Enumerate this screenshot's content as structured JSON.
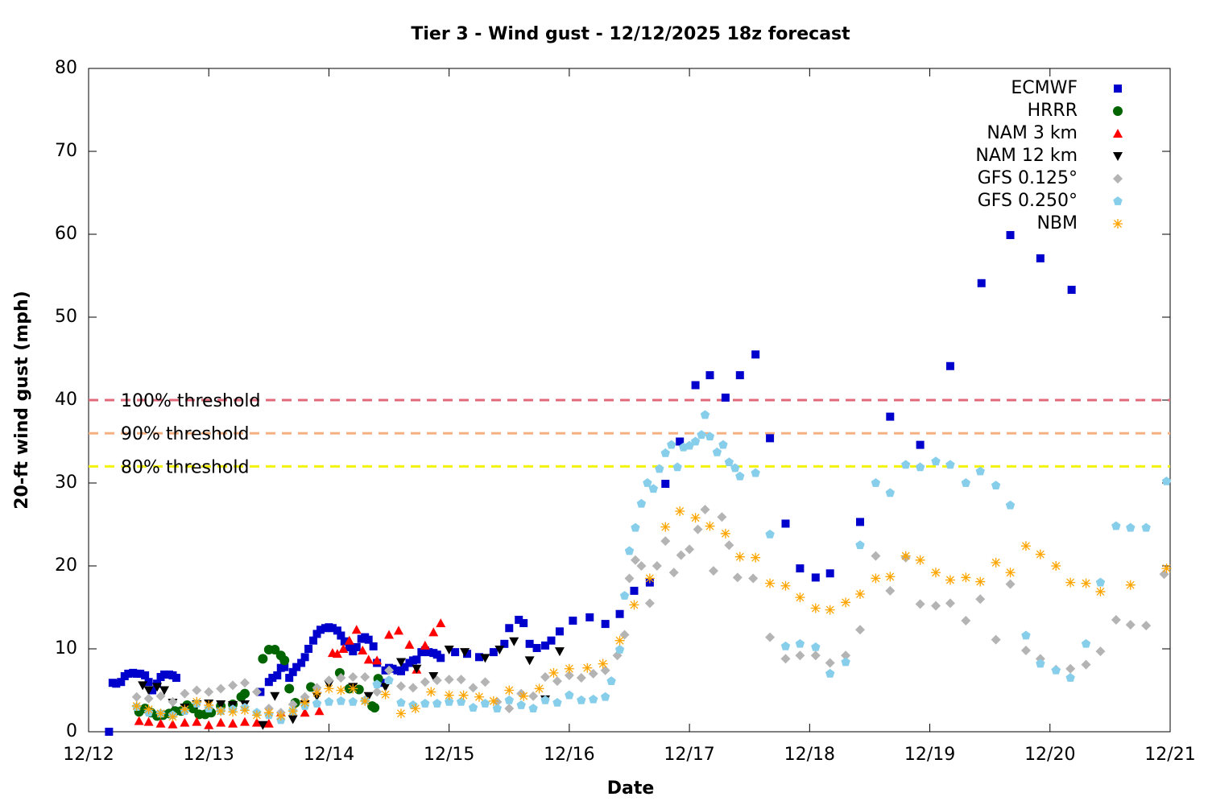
{
  "chart_data": {
    "type": "scatter",
    "title": "Tier 3 - Wind gust - 12/12/2025 18z forecast",
    "x_label": "Date",
    "y_label": "20-ft wind gust (mph)",
    "xlim": [
      12,
      21
    ],
    "xticks": [
      {
        "value": 12,
        "label": "12/12"
      },
      {
        "value": 13,
        "label": "12/13"
      },
      {
        "value": 14,
        "label": "12/14"
      },
      {
        "value": 15,
        "label": "12/15"
      },
      {
        "value": 16,
        "label": "12/16"
      },
      {
        "value": 17,
        "label": "12/17"
      },
      {
        "value": 18,
        "label": "12/18"
      },
      {
        "value": 19,
        "label": "12/19"
      },
      {
        "value": 20,
        "label": "12/20"
      },
      {
        "value": 21,
        "label": "12/21"
      }
    ],
    "ylim": [
      0,
      80
    ],
    "yticks": [
      0,
      10,
      20,
      30,
      40,
      50,
      60,
      70,
      80
    ],
    "legend": "top-right",
    "hlines": [
      {
        "value": 40,
        "label": "100% threshold",
        "color": "#e06a7a"
      },
      {
        "value": 36,
        "label": "90% threshold",
        "color": "#f5b182"
      },
      {
        "value": 32,
        "label": "80% threshold",
        "color": "#f2f20a"
      }
    ],
    "series": [
      {
        "name": "ECMWF",
        "color": "#0000cc",
        "marker": "square",
        "x": [
          12.17,
          12.2,
          12.23,
          12.27,
          12.3,
          12.33,
          12.37,
          12.4,
          12.43,
          12.47,
          12.5,
          12.53,
          12.57,
          12.6,
          12.63,
          12.67,
          12.7,
          12.73,
          13.43,
          13.5,
          13.53,
          13.57,
          13.6,
          13.63,
          13.67,
          13.7,
          13.73,
          13.77,
          13.8,
          13.83,
          13.87,
          13.9,
          13.93,
          13.97,
          14.0,
          14.03,
          14.07,
          14.1,
          14.13,
          14.17,
          14.2,
          14.23,
          14.27,
          14.3,
          14.33,
          14.37,
          14.4,
          14.43,
          14.47,
          14.5,
          14.53,
          14.57,
          14.6,
          14.63,
          14.67,
          14.7,
          14.73,
          14.77,
          14.8,
          14.83,
          14.87,
          14.9,
          14.93,
          15.05,
          15.15,
          15.25,
          15.37,
          15.46,
          15.5,
          15.58,
          15.62,
          15.67,
          15.73,
          15.8,
          15.85,
          15.92,
          16.03,
          16.17,
          16.3,
          16.42,
          16.54,
          16.67,
          16.8,
          16.92,
          17.05,
          17.17,
          17.3,
          17.42,
          17.55,
          17.67,
          17.8,
          17.92,
          18.05,
          18.17,
          18.42,
          18.67,
          18.92,
          19.17,
          19.43,
          19.67,
          19.92,
          20.18
        ],
        "values": [
          0,
          5.9,
          5.8,
          6,
          6.7,
          7,
          7.1,
          7,
          7,
          6.8,
          6,
          5,
          5.8,
          6.6,
          6.9,
          6.9,
          6.8,
          6.5,
          4.8,
          6,
          6.5,
          6.8,
          7.7,
          7.8,
          6.5,
          7.2,
          7.8,
          8.3,
          9,
          10,
          11,
          11.8,
          12.3,
          12.5,
          12.6,
          12.5,
          12.2,
          11.6,
          10.9,
          10.2,
          9.7,
          10.2,
          11.2,
          11.4,
          11.1,
          10.3,
          8.3,
          5.9,
          7.4,
          7.7,
          7.6,
          7.4,
          7.3,
          7.8,
          8.3,
          8.6,
          8.7,
          9.6,
          9.8,
          9.6,
          9.5,
          9.3,
          8.9,
          9.6,
          9.4,
          9,
          9.6,
          10.6,
          12.5,
          13.5,
          13.1,
          10.6,
          10.1,
          10.4,
          11,
          12.1,
          13.4,
          13.8,
          13,
          14.2,
          17,
          18,
          29.9,
          35,
          41.8,
          43,
          40.3,
          43,
          45.5,
          35.4,
          25.1,
          19.7,
          18.6,
          19.1,
          25.3,
          38,
          34.6,
          44.1,
          54.1,
          59.9,
          57.1,
          53.3
        ]
      },
      {
        "name": "HRRR",
        "color": "#006400",
        "marker": "circle",
        "x": [
          12.42,
          12.47,
          12.52,
          12.57,
          12.62,
          12.67,
          12.72,
          12.77,
          12.82,
          12.87,
          12.92,
          12.97,
          13.02,
          13.1,
          13.2,
          13.27,
          13.3,
          13.45,
          13.5,
          13.55,
          13.6,
          13.63,
          13.67,
          13.72,
          13.85,
          14.09,
          14.17,
          14.25,
          14.36,
          14.38,
          14.41
        ],
        "values": [
          2.4,
          2.8,
          2.3,
          1.9,
          2,
          2.2,
          2.5,
          2.5,
          3.2,
          2.8,
          2.1,
          2.1,
          2.3,
          3.1,
          3.3,
          4.2,
          4.6,
          8.8,
          9.9,
          9.9,
          9.2,
          8.6,
          5.2,
          3.5,
          5.4,
          7.1,
          5.2,
          5.1,
          3.1,
          2.9,
          6.4
        ]
      },
      {
        "name": "NAM 3 km",
        "color": "#ff0000",
        "marker": "triangle-up",
        "x": [
          12.42,
          12.5,
          12.6,
          12.7,
          12.8,
          12.9,
          13.0,
          13.1,
          13.2,
          13.3,
          13.4,
          13.5,
          13.6,
          13.8,
          13.92,
          14.03,
          14.07,
          14.12,
          14.17,
          14.23,
          14.28,
          14.33,
          14.4,
          14.5,
          14.58,
          14.67,
          14.73,
          14.8,
          14.87,
          14.93
        ],
        "values": [
          1.3,
          1.2,
          1,
          0.9,
          1.1,
          1.2,
          0.8,
          1.1,
          1,
          1.2,
          1.1,
          1,
          2.3,
          2.3,
          2.5,
          9.5,
          9.4,
          10,
          11,
          12.3,
          9.8,
          8.7,
          8.6,
          11.7,
          12.2,
          10.5,
          7.5,
          10.4,
          12,
          13.1
        ]
      },
      {
        "name": "NAM 12 km",
        "color": "#000000",
        "marker": "triangle-down",
        "x": [
          12.45,
          12.5,
          12.57,
          12.63,
          12.7,
          12.8,
          12.9,
          13.0,
          13.1,
          13.2,
          13.3,
          13.45,
          13.55,
          13.7,
          13.8,
          13.9,
          14.0,
          14.2,
          14.33,
          14.47,
          14.6,
          14.73,
          14.87,
          15.0,
          15.13,
          15.3,
          15.42,
          15.54,
          15.67,
          15.8,
          15.92
        ],
        "values": [
          5.6,
          5,
          5.4,
          5,
          3.5,
          2.9,
          3.3,
          3.4,
          3.3,
          3.2,
          3.3,
          0.8,
          4.3,
          1.5,
          3.3,
          4.3,
          5.7,
          5.4,
          4.3,
          5.4,
          8.4,
          7.6,
          6.7,
          9.9,
          9.6,
          8.9,
          9.9,
          10.9,
          8.6,
          3.9,
          9.7
        ]
      },
      {
        "name": "GFS 0.125°",
        "color": "#b4b4b4",
        "marker": "diamond",
        "x": [
          12.4,
          12.5,
          12.6,
          12.7,
          12.8,
          12.9,
          13.0,
          13.1,
          13.2,
          13.3,
          13.4,
          13.5,
          13.6,
          13.7,
          13.8,
          13.9,
          14.0,
          14.1,
          14.2,
          14.3,
          14.4,
          14.5,
          14.6,
          14.7,
          14.8,
          14.9,
          15.0,
          15.1,
          15.2,
          15.3,
          15.4,
          15.5,
          15.6,
          15.7,
          15.8,
          15.9,
          16.0,
          16.1,
          16.2,
          16.3,
          16.4,
          16.46,
          16.5,
          16.55,
          16.6,
          16.67,
          16.73,
          16.8,
          16.87,
          16.93,
          17.0,
          17.07,
          17.13,
          17.2,
          17.27,
          17.33,
          17.4,
          17.53,
          17.67,
          17.8,
          17.92,
          18.05,
          18.17,
          18.3,
          18.42,
          18.55,
          18.67,
          18.8,
          18.92,
          19.05,
          19.17,
          19.3,
          19.42,
          19.55,
          19.67,
          19.8,
          19.92,
          20.05,
          20.17,
          20.3,
          20.42,
          20.55,
          20.67,
          20.8,
          20.95
        ],
        "values": [
          4.2,
          4,
          4.3,
          3.6,
          4.6,
          5,
          4.8,
          5.2,
          5.6,
          5.9,
          4.8,
          2.8,
          2.3,
          3.3,
          4.2,
          5.3,
          6.2,
          6.5,
          6.6,
          6.6,
          4.8,
          7.4,
          5.5,
          5.3,
          6,
          6.2,
          6.3,
          6.3,
          5.3,
          6,
          3.6,
          2.8,
          4.6,
          4.3,
          6.6,
          6.1,
          6.8,
          6.5,
          7,
          7.4,
          9.2,
          11.7,
          18.5,
          20.7,
          20,
          15.5,
          20,
          23,
          19.2,
          21.3,
          22,
          24.4,
          26.8,
          19.4,
          25.9,
          22.5,
          18.6,
          18.5,
          11.4,
          8.8,
          9.2,
          9.2,
          8.3,
          9.2,
          12.3,
          21.2,
          17,
          21,
          15.4,
          15.2,
          15.5,
          13.4,
          16,
          11.1,
          17.8,
          9.8,
          8.8,
          7.5,
          7.6,
          8.1,
          9.7,
          13.5,
          12.9,
          12.8,
          19
        ]
      },
      {
        "name": "GFS 0.250°",
        "color": "#87ceeb",
        "marker": "pentagon",
        "x": [
          12.4,
          12.5,
          12.6,
          12.7,
          12.8,
          12.9,
          13.0,
          13.1,
          13.2,
          13.3,
          13.4,
          13.5,
          13.6,
          13.7,
          13.8,
          13.9,
          14.0,
          14.1,
          14.2,
          14.3,
          14.4,
          14.5,
          14.6,
          14.7,
          14.8,
          14.9,
          15.0,
          15.1,
          15.2,
          15.3,
          15.4,
          15.5,
          15.6,
          15.7,
          15.8,
          15.9,
          16.0,
          16.1,
          16.2,
          16.3,
          16.35,
          16.42,
          16.46,
          16.5,
          16.55,
          16.6,
          16.65,
          16.7,
          16.75,
          16.8,
          16.85,
          16.9,
          16.95,
          17.0,
          17.05,
          17.1,
          17.13,
          17.17,
          17.23,
          17.28,
          17.33,
          17.38,
          17.42,
          17.55,
          17.67,
          17.8,
          17.92,
          18.05,
          18.17,
          18.3,
          18.42,
          18.55,
          18.67,
          18.8,
          18.92,
          19.05,
          19.17,
          19.3,
          19.42,
          19.55,
          19.67,
          19.8,
          19.92,
          20.05,
          20.17,
          20.3,
          20.42,
          20.55,
          20.67,
          20.8,
          20.97
        ],
        "values": [
          3,
          2.3,
          2.2,
          2,
          2.5,
          3.4,
          2.8,
          2.5,
          2.7,
          2.9,
          2.3,
          2,
          1.4,
          2.5,
          3.1,
          3.4,
          3.6,
          3.7,
          3.6,
          3.8,
          5.7,
          6.2,
          3.5,
          3.2,
          3.4,
          3.4,
          3.6,
          3.6,
          2.9,
          3.4,
          2.8,
          3.8,
          3.2,
          2.8,
          3.8,
          3.5,
          4.4,
          3.8,
          3.9,
          4.2,
          6.1,
          9.9,
          16.4,
          21.8,
          24.6,
          27.5,
          30,
          29.3,
          31.7,
          33.6,
          34.6,
          31.9,
          34.3,
          34.5,
          35,
          35.8,
          38.2,
          35.6,
          33.7,
          34.6,
          32.5,
          31.8,
          30.8,
          31.2,
          23.8,
          10.3,
          10.6,
          10.2,
          7,
          8.4,
          22.5,
          30,
          28.8,
          32.2,
          31.9,
          32.6,
          32.2,
          30,
          31.4,
          29.7,
          27.3,
          11.6,
          8.2,
          7.4,
          6.5,
          10.6,
          18,
          24.8,
          24.6,
          24.6,
          30.2
        ]
      },
      {
        "name": "NBM",
        "color": "#ffa500",
        "marker": "star",
        "x": [
          12.4,
          12.5,
          12.6,
          12.7,
          12.8,
          12.9,
          13.0,
          13.1,
          13.2,
          13.3,
          13.4,
          13.5,
          13.6,
          13.7,
          13.8,
          13.9,
          14.0,
          14.1,
          14.2,
          14.3,
          14.47,
          14.6,
          14.72,
          14.85,
          15.0,
          15.12,
          15.25,
          15.37,
          15.5,
          15.62,
          15.75,
          15.87,
          16.0,
          16.15,
          16.28,
          16.42,
          16.54,
          16.67,
          16.8,
          16.92,
          17.05,
          17.17,
          17.3,
          17.42,
          17.55,
          17.67,
          17.8,
          17.92,
          18.05,
          18.17,
          18.3,
          18.42,
          18.55,
          18.67,
          18.8,
          18.92,
          19.05,
          19.17,
          19.3,
          19.42,
          19.55,
          19.67,
          19.8,
          19.92,
          20.05,
          20.17,
          20.3,
          20.42,
          20.67,
          20.97
        ],
        "values": [
          3.1,
          2.7,
          2.2,
          1.8,
          2.7,
          3.6,
          3.2,
          2.5,
          2.4,
          2.6,
          2,
          2.3,
          1.9,
          2.5,
          3.5,
          4.7,
          5.2,
          5,
          5.2,
          3.7,
          4.5,
          2.2,
          2.8,
          4.8,
          4.4,
          4.4,
          4.2,
          3.7,
          5,
          4.3,
          5.2,
          7.1,
          7.6,
          7.7,
          8.2,
          11,
          15.3,
          18.5,
          24.7,
          26.6,
          25.8,
          24.8,
          23.9,
          21.1,
          21,
          17.9,
          17.6,
          16.2,
          14.9,
          14.7,
          15.6,
          16.6,
          18.5,
          18.7,
          21.2,
          20.7,
          19.2,
          18.3,
          18.6,
          18.1,
          20.4,
          19.2,
          22.4,
          21.4,
          20,
          18,
          17.9,
          16.9,
          17.7,
          19.7
        ]
      }
    ]
  }
}
